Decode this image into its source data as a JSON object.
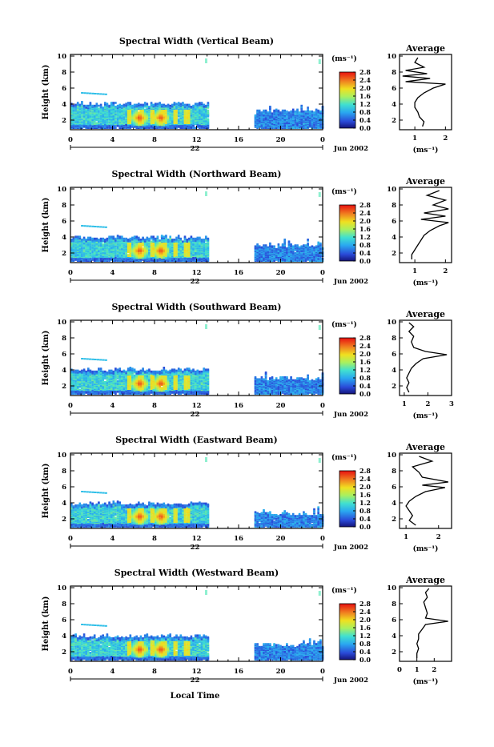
{
  "figure": {
    "xlabel": "Local Time",
    "date_label": "Jun 2002",
    "day_label": "22",
    "colorbar_unit": "(ms⁻¹)",
    "colorbar_ticks": [
      "0.0",
      "0.4",
      "0.8",
      "1.2",
      "1.6",
      "2.0",
      "2.4",
      "2.8"
    ],
    "ylabel": "Height (km)",
    "avg_title": "Average",
    "avg_xlabel": "(ms⁻¹)",
    "colors": {
      "low": "#1a1a8c",
      "mid": "#2fbfe8",
      "high": "#e81010",
      "sky": "#8ff0d0"
    }
  },
  "chart_data": [
    {
      "type": "heatmap",
      "title": "Spectral Width (Vertical Beam)",
      "xlabel": "Local Time",
      "ylabel": "Height (km)",
      "x_ticks": [
        "0",
        "4",
        "8",
        "12",
        "16",
        "20",
        "0"
      ],
      "y_ticks": [
        "2",
        "4",
        "6",
        "8",
        "10"
      ],
      "xlim": [
        0,
        24
      ],
      "ylim": [
        0.8,
        10.2
      ],
      "zlim": [
        0,
        2.8
      ],
      "data_ranges": [
        {
          "from": 0,
          "to": 13,
          "top_km": 3.9
        },
        {
          "from": 17.5,
          "to": 24,
          "top_km": 3.0
        }
      ],
      "hotspots_hours": [
        6.5,
        8.5
      ],
      "average_profile": {
        "xlim": [
          0.5,
          2.2
        ],
        "x_ticks": [
          "1",
          "2"
        ],
        "y_ticks": [
          "2",
          "4",
          "6",
          "8",
          "10"
        ],
        "ylim": [
          0.8,
          10.2
        ],
        "points": [
          [
            1.25,
            1.2
          ],
          [
            1.3,
            1.8
          ],
          [
            1.15,
            2.4
          ],
          [
            1.1,
            3.0
          ],
          [
            1.0,
            3.6
          ],
          [
            1.0,
            4.2
          ],
          [
            1.1,
            4.8
          ],
          [
            1.3,
            5.4
          ],
          [
            1.6,
            6.0
          ],
          [
            2.0,
            6.5
          ],
          [
            0.7,
            6.8
          ],
          [
            1.5,
            7.2
          ],
          [
            0.6,
            7.5
          ],
          [
            1.4,
            7.8
          ],
          [
            0.7,
            8.2
          ],
          [
            1.3,
            8.6
          ],
          [
            1.0,
            9.2
          ],
          [
            1.1,
            9.8
          ]
        ]
      }
    },
    {
      "type": "heatmap",
      "title": "Spectral Width (Northward Beam)",
      "xlabel": "Local Time",
      "ylabel": "Height (km)",
      "x_ticks": [
        "0",
        "4",
        "8",
        "12",
        "16",
        "20",
        "0"
      ],
      "y_ticks": [
        "2",
        "4",
        "6",
        "8",
        "10"
      ],
      "xlim": [
        0,
        24
      ],
      "ylim": [
        0.8,
        10.2
      ],
      "zlim": [
        0,
        2.8
      ],
      "data_ranges": [
        {
          "from": 0,
          "to": 13,
          "top_km": 3.8
        },
        {
          "from": 17.5,
          "to": 24,
          "top_km": 2.8
        }
      ],
      "hotspots_hours": [
        6.5,
        8.5
      ],
      "average_profile": {
        "xlim": [
          0.5,
          2.2
        ],
        "x_ticks": [
          "1",
          "2"
        ],
        "y_ticks": [
          "2",
          "4",
          "6",
          "8",
          "10"
        ],
        "ylim": [
          0.8,
          10.2
        ],
        "points": [
          [
            0.9,
            1.2
          ],
          [
            0.9,
            1.8
          ],
          [
            1.0,
            2.4
          ],
          [
            1.1,
            3.0
          ],
          [
            1.2,
            3.6
          ],
          [
            1.3,
            4.2
          ],
          [
            1.5,
            4.8
          ],
          [
            1.8,
            5.4
          ],
          [
            2.1,
            5.8
          ],
          [
            1.2,
            6.2
          ],
          [
            2.0,
            6.6
          ],
          [
            1.3,
            7.0
          ],
          [
            2.1,
            7.5
          ],
          [
            1.6,
            8.0
          ],
          [
            2.0,
            8.6
          ],
          [
            1.4,
            9.2
          ],
          [
            1.8,
            9.8
          ]
        ]
      }
    },
    {
      "type": "heatmap",
      "title": "Spectral Width (Southward Beam)",
      "xlabel": "Local Time",
      "ylabel": "Height (km)",
      "x_ticks": [
        "0",
        "4",
        "8",
        "12",
        "16",
        "20",
        "0"
      ],
      "y_ticks": [
        "2",
        "4",
        "6",
        "8",
        "10"
      ],
      "xlim": [
        0,
        24
      ],
      "ylim": [
        0.8,
        10.2
      ],
      "zlim": [
        0,
        2.8
      ],
      "data_ranges": [
        {
          "from": 0,
          "to": 13,
          "top_km": 3.9
        },
        {
          "from": 17.5,
          "to": 24,
          "top_km": 2.8
        }
      ],
      "hotspots_hours": [
        6.5,
        8.5
      ],
      "average_profile": {
        "xlim": [
          0.8,
          3.0
        ],
        "x_ticks": [
          "1",
          "2",
          "3"
        ],
        "y_ticks": [
          "2",
          "4",
          "6",
          "8",
          "10"
        ],
        "ylim": [
          0.8,
          10.2
        ],
        "points": [
          [
            1.2,
            1.2
          ],
          [
            1.1,
            1.8
          ],
          [
            1.2,
            2.4
          ],
          [
            1.1,
            3.0
          ],
          [
            1.2,
            3.6
          ],
          [
            1.3,
            4.2
          ],
          [
            1.5,
            4.8
          ],
          [
            1.8,
            5.4
          ],
          [
            2.8,
            5.9
          ],
          [
            1.9,
            6.3
          ],
          [
            1.4,
            6.8
          ],
          [
            1.3,
            7.5
          ],
          [
            1.4,
            8.2
          ],
          [
            1.2,
            8.8
          ],
          [
            1.4,
            9.4
          ],
          [
            1.2,
            9.9
          ]
        ]
      }
    },
    {
      "type": "heatmap",
      "title": "Spectral Width (Eastward Beam)",
      "xlabel": "Local Time",
      "ylabel": "Height (km)",
      "x_ticks": [
        "0",
        "4",
        "8",
        "12",
        "16",
        "20",
        "0"
      ],
      "y_ticks": [
        "2",
        "4",
        "6",
        "8",
        "10"
      ],
      "xlim": [
        0,
        24
      ],
      "ylim": [
        0.8,
        10.2
      ],
      "zlim": [
        0,
        2.8
      ],
      "data_ranges": [
        {
          "from": 0,
          "to": 13,
          "top_km": 3.8
        },
        {
          "from": 17.5,
          "to": 24,
          "top_km": 2.5
        }
      ],
      "hotspots_hours": [
        6.5,
        8.5
      ],
      "average_profile": {
        "xlim": [
          0.8,
          2.4
        ],
        "x_ticks": [
          "1",
          "2"
        ],
        "y_ticks": [
          "2",
          "4",
          "6",
          "8",
          "10"
        ],
        "ylim": [
          0.8,
          10.2
        ],
        "points": [
          [
            1.3,
            1.2
          ],
          [
            1.1,
            1.8
          ],
          [
            1.2,
            2.4
          ],
          [
            1.1,
            3.0
          ],
          [
            1.0,
            3.6
          ],
          [
            1.1,
            4.2
          ],
          [
            1.3,
            4.8
          ],
          [
            1.6,
            5.4
          ],
          [
            2.2,
            5.9
          ],
          [
            1.5,
            6.2
          ],
          [
            2.3,
            6.6
          ],
          [
            1.5,
            7.2
          ],
          [
            1.4,
            7.8
          ],
          [
            1.2,
            8.5
          ],
          [
            1.8,
            9.2
          ],
          [
            1.4,
            9.8
          ]
        ]
      }
    },
    {
      "type": "heatmap",
      "title": "Spectral Width (Westward Beam)",
      "xlabel": "Local Time",
      "ylabel": "Height (km)",
      "x_ticks": [
        "0",
        "4",
        "8",
        "12",
        "16",
        "20",
        "0"
      ],
      "y_ticks": [
        "2",
        "4",
        "6",
        "8",
        "10"
      ],
      "xlim": [
        0,
        24
      ],
      "ylim": [
        0.8,
        10.2
      ],
      "zlim": [
        0,
        2.8
      ],
      "data_ranges": [
        {
          "from": 0,
          "to": 13,
          "top_km": 3.8
        },
        {
          "from": 17.5,
          "to": 24,
          "top_km": 2.7
        }
      ],
      "hotspots_hours": [
        6.5,
        8.5
      ],
      "average_profile": {
        "xlim": [
          0,
          3
        ],
        "x_ticks": [
          "0",
          "1",
          "2"
        ],
        "y_ticks": [
          "2",
          "4",
          "6",
          "8",
          "10"
        ],
        "ylim": [
          0.8,
          10.2
        ],
        "points": [
          [
            1.0,
            1.2
          ],
          [
            1.0,
            1.8
          ],
          [
            1.1,
            2.4
          ],
          [
            1.0,
            3.0
          ],
          [
            1.1,
            3.6
          ],
          [
            1.1,
            4.2
          ],
          [
            1.3,
            4.8
          ],
          [
            1.5,
            5.4
          ],
          [
            2.8,
            5.8
          ],
          [
            1.5,
            6.2
          ],
          [
            1.6,
            6.8
          ],
          [
            1.5,
            7.5
          ],
          [
            1.4,
            8.2
          ],
          [
            1.6,
            8.8
          ],
          [
            1.5,
            9.4
          ],
          [
            1.7,
            9.9
          ]
        ]
      }
    }
  ]
}
